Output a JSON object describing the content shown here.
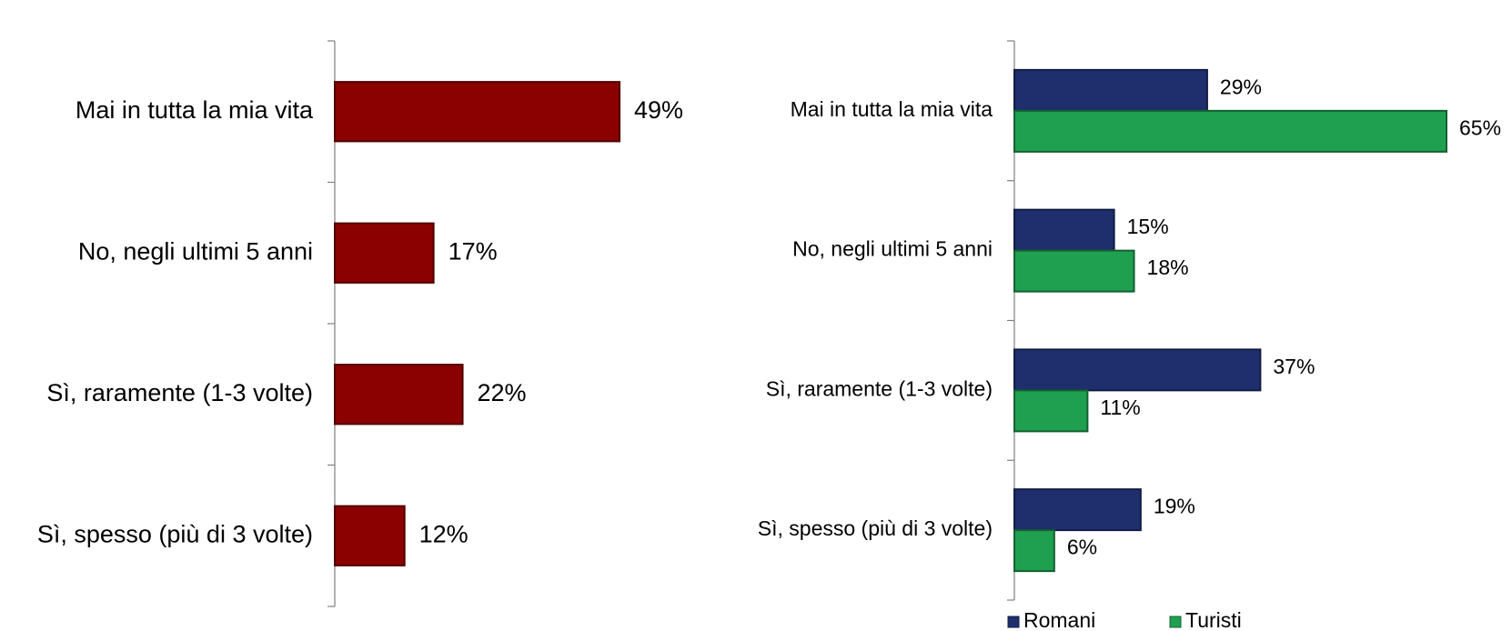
{
  "chart_data": [
    {
      "type": "bar",
      "categories": [
        "Mai in tutta la mia vita",
        "No, negli ultimi 5 anni",
        "Sì, raramente (1-3 volte)",
        "Sì, spesso (più di 3 volte)"
      ],
      "values": [
        49,
        17,
        22,
        12
      ],
      "value_labels": [
        "49%",
        "17%",
        "22%",
        "12%"
      ],
      "color": "#8b0000"
    },
    {
      "type": "grouped_bar",
      "categories": [
        "Mai in tutta la mia vita",
        "No, negli ultimi 5 anni",
        "Sì, raramente (1-3 volte)",
        "Sì, spesso (più di 3 volte)"
      ],
      "series": [
        {
          "name": "Romani",
          "color": "#1f2f6e",
          "values": [
            29,
            15,
            37,
            19
          ],
          "value_labels": [
            "29%",
            "15%",
            "37%",
            "19%"
          ]
        },
        {
          "name": "Turisti",
          "color": "#1fa050",
          "values": [
            65,
            18,
            11,
            6
          ],
          "value_labels": [
            "65%",
            "18%",
            "11%",
            "6%"
          ]
        }
      ],
      "legend": "bottom"
    }
  ]
}
